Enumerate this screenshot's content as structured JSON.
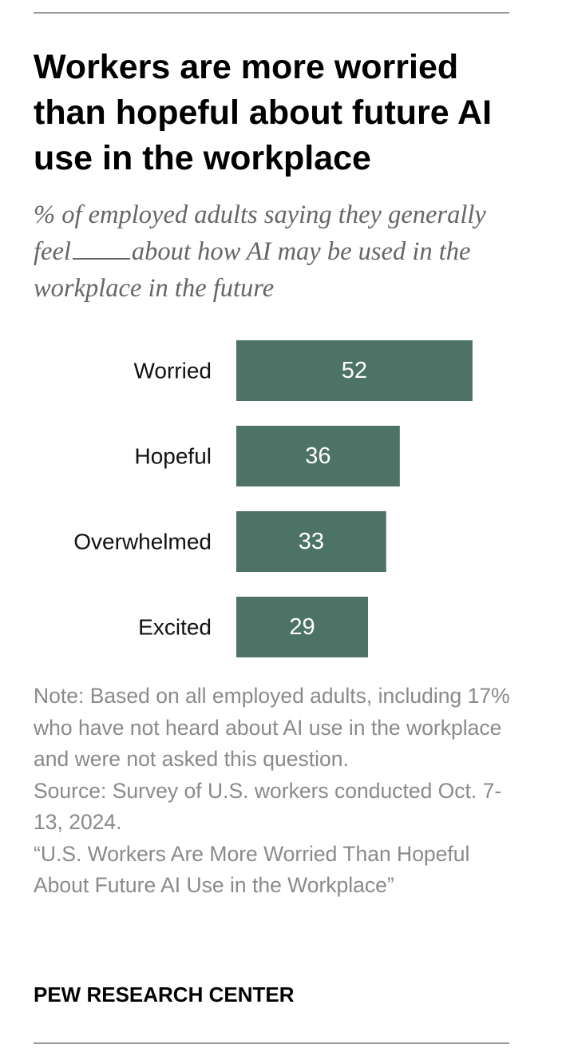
{
  "title": "Workers are more worried than hopeful about future AI use in the workplace",
  "subtitle": {
    "before_blank": "% of employed adults saying they generally feel",
    "after_blank": "about how AI may be used in the workplace in the future"
  },
  "chart_data": {
    "type": "bar",
    "orientation": "horizontal",
    "categories": [
      "Worried",
      "Hopeful",
      "Overwhelmed",
      "Excited"
    ],
    "values": [
      52,
      36,
      33,
      29
    ],
    "value_labels": [
      "52",
      "36",
      "33",
      "29"
    ],
    "bar_color": "#4d7366",
    "value_label_color": "#ffffff",
    "grid": false,
    "xlim": [
      0,
      100
    ]
  },
  "note": "Note: Based on all employed adults, including 17% who have not heard about AI use in the workplace and were not asked this question.",
  "source": "Source: Survey of U.S. workers conducted Oct. 7-13, 2024.",
  "report": "“U.S. Workers Are More Worried Than Hopeful About Future AI Use in the Workplace”",
  "org": "PEW RESEARCH CENTER"
}
